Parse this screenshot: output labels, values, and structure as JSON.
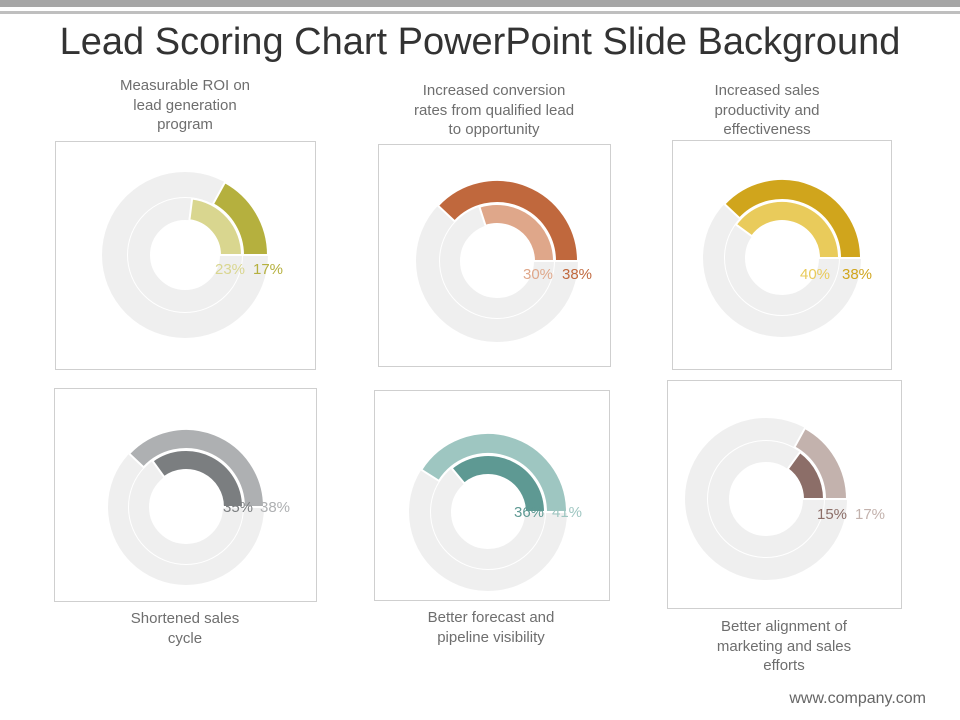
{
  "slide": {
    "title": "Lead Scoring Chart PowerPoint Slide Background",
    "footer": "www.company.com"
  },
  "chart_data": [
    {
      "type": "pie",
      "title": "Measurable ROI on\nlead generation\nprogram",
      "inner": {
        "label": "23%",
        "value": 23,
        "color": "#d9d68f"
      },
      "outer": {
        "label": "17%",
        "value": 17,
        "color": "#b5b03e"
      },
      "track_color": "#efefef"
    },
    {
      "type": "pie",
      "title": "Increased conversion\nrates from qualified lead\nto opportunity",
      "inner": {
        "label": "30%",
        "value": 30,
        "color": "#dfa78a"
      },
      "outer": {
        "label": "38%",
        "value": 38,
        "color": "#c0683d"
      },
      "track_color": "#efefef"
    },
    {
      "type": "pie",
      "title": "Increased sales\nproductivity and\neffectiveness",
      "inner": {
        "label": "40%",
        "value": 40,
        "color": "#e9cb5b"
      },
      "outer": {
        "label": "38%",
        "value": 38,
        "color": "#d0a51c"
      },
      "track_color": "#efefef"
    },
    {
      "type": "pie",
      "title": "Shortened sales\ncycle",
      "inner": {
        "label": "35%",
        "value": 35,
        "color": "#7b7e80"
      },
      "outer": {
        "label": "38%",
        "value": 38,
        "color": "#aeb0b2"
      },
      "track_color": "#efefef"
    },
    {
      "type": "pie",
      "title": "Better forecast and\npipeline visibility",
      "inner": {
        "label": "36%",
        "value": 36,
        "color": "#5e9993"
      },
      "outer": {
        "label": "41%",
        "value": 41,
        "color": "#9ec6c1"
      },
      "track_color": "#efefef"
    },
    {
      "type": "pie",
      "title": "Better alignment of\nmarketing and sales\nefforts",
      "inner": {
        "label": "15%",
        "value": 15,
        "color": "#8c6e68"
      },
      "outer": {
        "label": "17%",
        "value": 17,
        "color": "#c3b2ad"
      },
      "track_color": "#efefef"
    }
  ]
}
